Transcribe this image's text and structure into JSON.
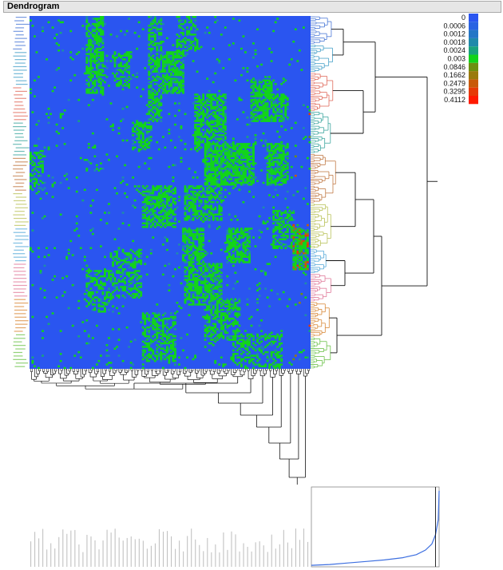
{
  "window": {
    "title": "Dendrogram"
  },
  "chart_data": {
    "type": "heatmap",
    "title": "Dendrogram",
    "clustering": "two-way hierarchical",
    "rows": 200,
    "columns": 140,
    "row_cluster_colors": [
      "#4a78d6",
      "#45a0c8",
      "#e06b5c",
      "#3fa7a0",
      "#c17a46",
      "#b9c25a",
      "#56a9d8",
      "#e07a9a",
      "#d98a3a",
      "#6cc24a"
    ],
    "color_scale": {
      "labels": [
        "0",
        "0.0006",
        "0.0012",
        "0.0018",
        "0.0024",
        "0.003",
        "0.0846",
        "0.1662",
        "0.2479",
        "0.3295",
        "0.4112"
      ],
      "colors": [
        "#2a55f0",
        "#2a63e2",
        "#2476c6",
        "#1f8aaa",
        "#19a37d",
        "#12d41a",
        "#6d8f10",
        "#9a7a0d",
        "#c85a09",
        "#e63a06",
        "#ff1a00"
      ]
    },
    "distance_graph": {
      "type": "line",
      "description": "sorted join distances",
      "points": [
        [
          0,
          0.02
        ],
        [
          20,
          0.03
        ],
        [
          40,
          0.05
        ],
        [
          60,
          0.07
        ],
        [
          80,
          0.09
        ],
        [
          100,
          0.12
        ],
        [
          115,
          0.16
        ],
        [
          125,
          0.22
        ],
        [
          132,
          0.3
        ],
        [
          136,
          0.42
        ],
        [
          139,
          0.62
        ],
        [
          140,
          1.0
        ]
      ],
      "cut_line": {
        "x": 136
      },
      "xlim": [
        0,
        140
      ],
      "ylim": [
        0,
        1.05
      ],
      "line_color": "#3d6fe0"
    }
  }
}
